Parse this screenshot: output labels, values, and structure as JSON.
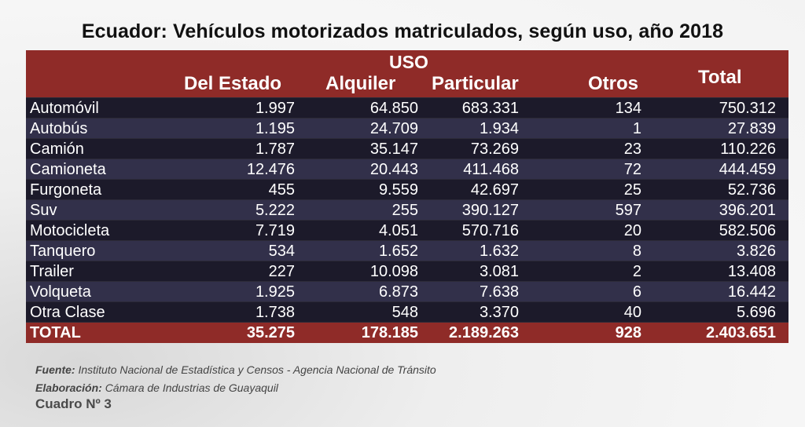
{
  "title": "Ecuador: Vehículos motorizados matriculados, según uso, año 2018",
  "header": {
    "group_label": "USO",
    "columns": [
      "Del Estado",
      "Alquiler",
      "Particular",
      "Otros",
      "Total"
    ]
  },
  "rows": [
    {
      "label": "Automóvil",
      "values": [
        "1.997",
        "64.850",
        "683.331",
        "134",
        "750.312"
      ]
    },
    {
      "label": "Autobús",
      "values": [
        "1.195",
        "24.709",
        "1.934",
        "1",
        "27.839"
      ]
    },
    {
      "label": "Camión",
      "values": [
        "1.787",
        "35.147",
        "73.269",
        "23",
        "110.226"
      ]
    },
    {
      "label": "Camioneta",
      "values": [
        "12.476",
        "20.443",
        "411.468",
        "72",
        "444.459"
      ]
    },
    {
      "label": "Furgoneta",
      "values": [
        "455",
        "9.559",
        "42.697",
        "25",
        "52.736"
      ]
    },
    {
      "label": "Suv",
      "values": [
        "5.222",
        "255",
        "390.127",
        "597",
        "396.201"
      ]
    },
    {
      "label": "Motocicleta",
      "values": [
        "7.719",
        "4.051",
        "570.716",
        "20",
        "582.506"
      ]
    },
    {
      "label": "Tanquero",
      "values": [
        "534",
        "1.652",
        "1.632",
        "8",
        "3.826"
      ]
    },
    {
      "label": "Trailer",
      "values": [
        "227",
        "10.098",
        "3.081",
        "2",
        "13.408"
      ]
    },
    {
      "label": "Volqueta",
      "values": [
        "1.925",
        "6.873",
        "7.638",
        "6",
        "16.442"
      ]
    },
    {
      "label": "Otra Clase",
      "values": [
        "1.738",
        "548",
        "3.370",
        "40",
        "5.696"
      ]
    }
  ],
  "total": {
    "label": "TOTAL",
    "values": [
      "35.275",
      "178.185",
      "2.189.263",
      "928",
      "2.403.651"
    ]
  },
  "footer": {
    "source_label": "Fuente:",
    "source_text": "Instituto Nacional de Estadística y Censos -  Agencia Nacional de Tránsito",
    "made_label": "Elaboración:",
    "made_text": "Cámara de Industrias de Guayaquil",
    "table_id": "Cuadro Nº 3"
  },
  "colors": {
    "header_red": "#8f2b28",
    "row_dark": "#1c1a2a",
    "row_light": "#32304a"
  }
}
